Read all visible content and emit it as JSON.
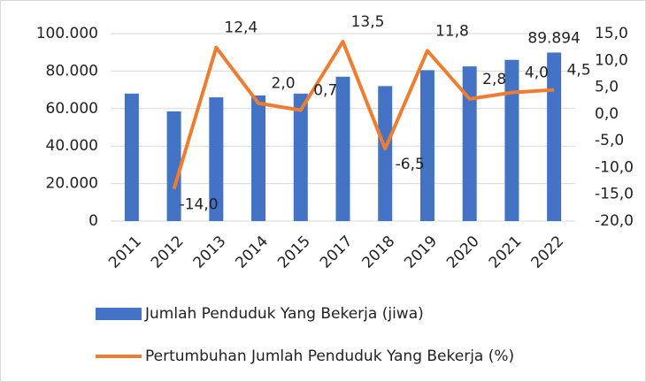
{
  "chart_data": {
    "type": "bar_line",
    "categories": [
      "2011",
      "2012",
      "2013",
      "2014",
      "2015",
      "2017",
      "2018",
      "2019",
      "2020",
      "2021",
      "2022"
    ],
    "series": [
      {
        "name": "Jumlah Penduduk Yang Bekerja (jiwa)",
        "type": "bar",
        "color": "#4472c4",
        "values": [
          68000,
          58500,
          66000,
          67000,
          68000,
          77000,
          72000,
          80500,
          82500,
          86000,
          89894
        ],
        "value_labels": [
          null,
          null,
          null,
          null,
          null,
          null,
          null,
          null,
          null,
          null,
          "89.894"
        ]
      },
      {
        "name": "Pertumbuhan Jumlah Penduduk Yang Bekerja (%)",
        "type": "line",
        "axis": "y2",
        "color": "#ed7d31",
        "values": [
          null,
          -14.0,
          12.4,
          2.0,
          0.7,
          13.5,
          -6.5,
          11.8,
          2.8,
          4.0,
          4.5
        ],
        "value_labels": [
          null,
          "-14,0",
          "12,4",
          "2,0",
          "0,7",
          "13,5",
          "-6,5",
          "11,8",
          "2,8",
          "4,0",
          "4,5"
        ]
      }
    ],
    "ylim": [
      0,
      100000
    ],
    "yticks": [
      0,
      {
        "value": 20000,
        "label": "20.000"
      },
      {
        "value": 40000,
        "label": "40.000"
      },
      {
        "value": 60000,
        "label": "60.000"
      },
      {
        "value": 80000,
        "label": "80.000"
      },
      {
        "value": 100000,
        "label": "100.000"
      }
    ],
    "y2lim": [
      -20,
      15
    ],
    "y2ticks": [
      {
        "value": -20,
        "label": "-20,0"
      },
      {
        "value": -15,
        "label": "-15,0"
      },
      {
        "value": -10,
        "label": "-10,0"
      },
      {
        "value": -5,
        "label": "-5,0"
      },
      {
        "value": 0,
        "label": "0,0"
      },
      {
        "value": 5,
        "label": "5,0"
      },
      {
        "value": 10,
        "label": "10,0"
      },
      {
        "value": 15,
        "label": "15,0"
      }
    ],
    "grid": true,
    "legend": "bottom"
  }
}
